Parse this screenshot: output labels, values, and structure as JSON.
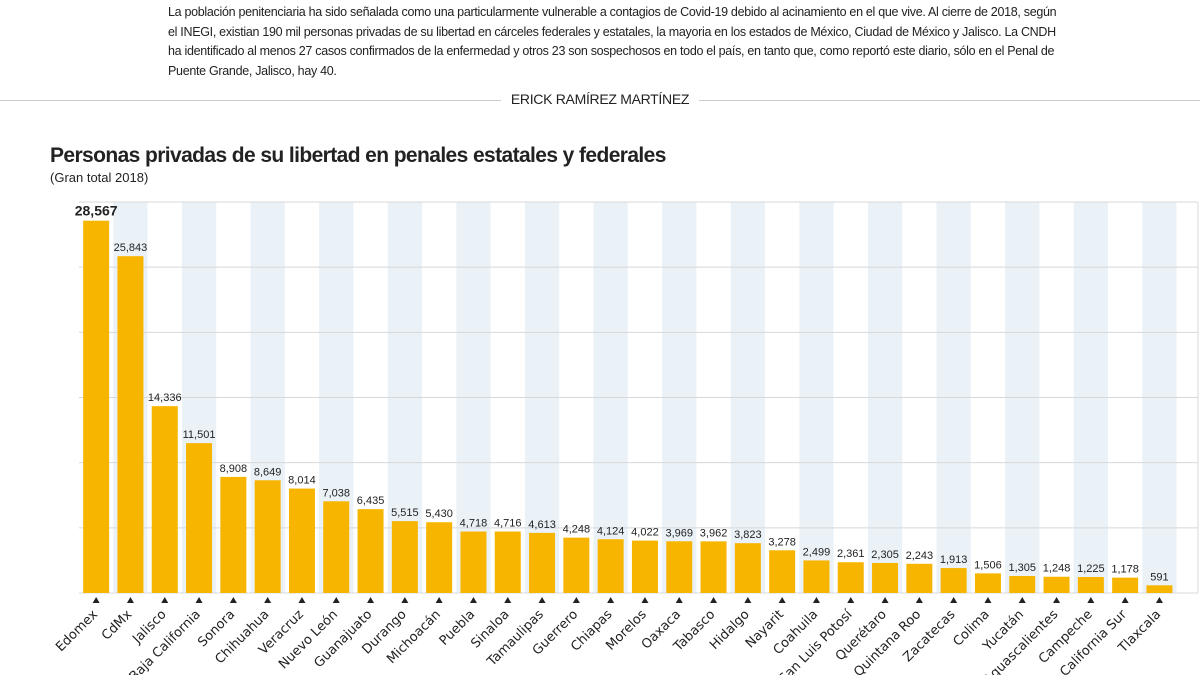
{
  "article": {
    "intro": "La población penitenciaria ha sido señalada como una particularmente vulnerable a contagios de Covid-19 debido al acinamiento en el que vive. Al cierre de 2018, según el INEGI, existian 190 mil personas privadas de su libertad en cárceles federales y estatales, la mayoria en los estados de México, Ciudad de México y Jalisco. La CNDH  ha identificado al menos 27 casos confirmados de la enfermedad y otros 23 son sospechosos en todo el país, en tanto que, como reportó este diario, sólo en el Penal de Puente Grande, Jalisco, hay 40.",
    "byline": "ERICK RAMÍREZ MARTÍNEZ"
  },
  "chart_data": {
    "type": "bar",
    "title": "Personas privadas de su libertad en penales estatales y federales",
    "subtitle": "(Gran total 2018)",
    "categories": [
      "Edomex",
      "CdMx",
      "Jalisco",
      "Baja California",
      "Sonora",
      "Chihuahua",
      "Veracruz",
      "Nuevo León",
      "Guanajuato",
      "Durango",
      "Michoacán",
      "Puebla",
      "Sinaloa",
      "Tamaulipas",
      "Guerrero",
      "Chiapas",
      "Morelos",
      "Oaxaca",
      "Tabasco",
      "Hidalgo",
      "Nayarit",
      "Coahuila",
      "San Luis Potosí",
      "Querétaro",
      "Quintana Roo",
      "Zacatecas",
      "Colima",
      "Yucatán",
      "Aguascalientes",
      "Campeche",
      "Baja California Sur",
      "Tlaxcala"
    ],
    "values": [
      28567,
      25843,
      14336,
      11501,
      8908,
      8649,
      8014,
      7038,
      6435,
      5515,
      5430,
      4718,
      4716,
      4613,
      4248,
      4124,
      4022,
      3969,
      3962,
      3823,
      3278,
      2499,
      2361,
      2305,
      2243,
      1913,
      1506,
      1305,
      1248,
      1225,
      1178,
      591
    ],
    "data_labels": [
      "28,567",
      "25,843",
      "14,336",
      "11,501",
      "8,908",
      "8,649",
      "8,014",
      "7,038",
      "6,435",
      "5,515",
      "5,430",
      "4,718",
      "4,716",
      "4,613",
      "4,248",
      "4,124",
      "4,022",
      "3,969",
      "3,962",
      "3,823",
      "3,278",
      "2,499",
      "2,361",
      "2,305",
      "2,243",
      "1,913",
      "1,506",
      "1,305",
      "1,248",
      "1,225",
      "1,178",
      "591"
    ],
    "ylim": [
      0,
      30000
    ],
    "grid": true,
    "colors": {
      "bar": "#f7b500",
      "band": "#eaf2f8",
      "grid": "#d8d8d8"
    }
  }
}
